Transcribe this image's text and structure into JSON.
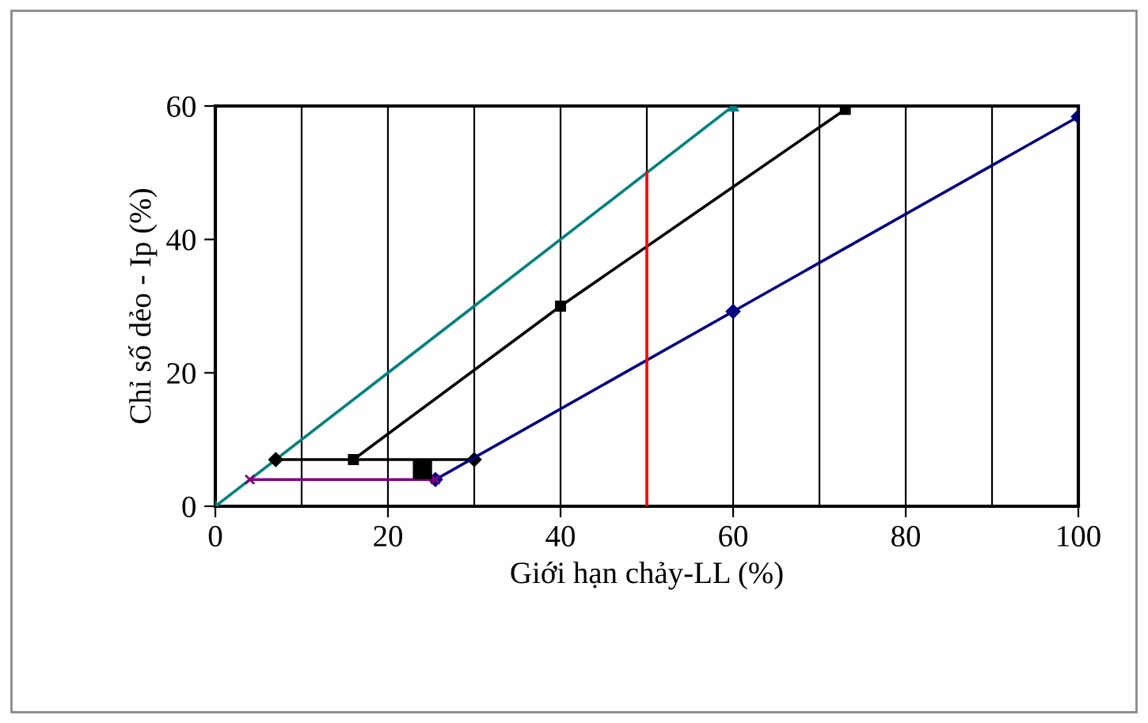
{
  "chart_data": {
    "type": "line",
    "xlabel": "Giới hạn chảy-LL (%)",
    "ylabel": "Chỉ số dẻo - Ip (%)",
    "xlim": [
      0,
      100
    ],
    "ylim": [
      0,
      60
    ],
    "xticks": [
      0,
      {
        "value": 10,
        "label": null
      },
      20,
      {
        "value": 30,
        "label": null
      },
      40,
      {
        "value": 50,
        "label": null
      },
      60,
      {
        "value": 70,
        "label": null
      },
      80,
      {
        "value": 90,
        "label": null
      },
      100
    ],
    "yticks": [
      0,
      20,
      40,
      60
    ],
    "grid": "x",
    "line_style": "solid",
    "series": [
      {
        "color": "#008080",
        "x": [
          0,
          60
        ],
        "values": [
          0,
          60
        ],
        "marker": "triangle"
      },
      {
        "color": "#000000",
        "x": [
          16,
          40,
          73
        ],
        "values": [
          7,
          30,
          59.5
        ],
        "marker": "square"
      },
      {
        "color": "#000000",
        "x": [
          7,
          30
        ],
        "values": [
          7,
          7
        ],
        "marker": "diamond"
      },
      {
        "color": "#000080",
        "x": [
          25.5,
          60,
          100
        ],
        "values": [
          4,
          29.2,
          58.4
        ],
        "marker": "diamond"
      },
      {
        "color": "#800080",
        "x": [
          4,
          25.5
        ],
        "values": [
          4,
          4
        ],
        "marker": "cross"
      },
      {
        "color": "#ff0000",
        "x": [
          50,
          50
        ],
        "values": [
          0,
          50
        ],
        "marker": "none"
      },
      {
        "type": "scatter",
        "color": "#000000",
        "x": [
          24
        ],
        "values": [
          5.5
        ],
        "marker": "square"
      }
    ]
  }
}
